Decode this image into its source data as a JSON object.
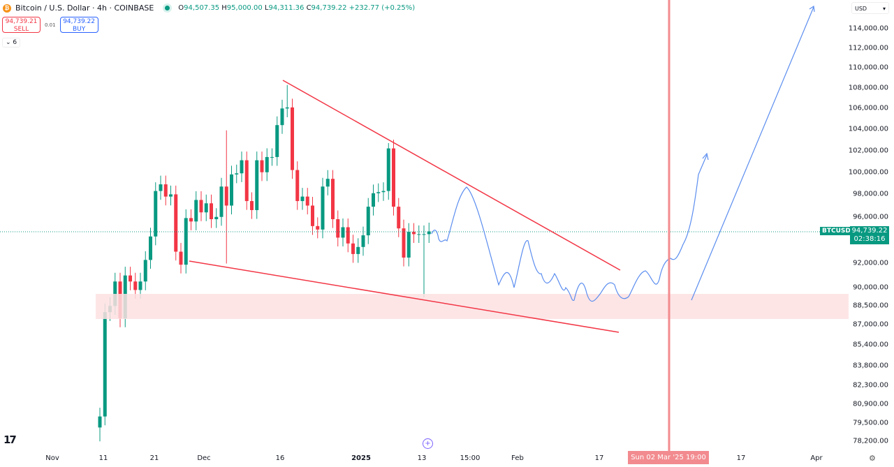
{
  "header": {
    "symbol_title": "Bitcoin / U.S. Dollar · 4h · COINBASE",
    "open": "94,507.35",
    "high": "95,000.00",
    "low": "94,311.36",
    "close": "94,739.22",
    "change": "+232.77 (+0.25%)",
    "o": "O",
    "h": "H",
    "l": "L",
    "c": "C"
  },
  "trade": {
    "sell_price": "94,739.21",
    "sell_label": "SELL",
    "spread": "0.01",
    "buy_price": "94,739.22",
    "buy_label": "BUY"
  },
  "indicators_toggle": "6",
  "currency": "USD",
  "price_axis": {
    "ticks": [
      "114,000.00",
      "112,000.00",
      "110,000.00",
      "108,000.00",
      "106,000.00",
      "104,000.00",
      "102,000.00",
      "100,000.00",
      "98,000.00",
      "96,000.00",
      "92,000.00",
      "90,000.00",
      "88,500.00",
      "87,000.00",
      "85,400.00",
      "83,800.00",
      "82,300.00",
      "80,900.00",
      "79,500.00",
      "78,200.00"
    ],
    "scale": "log"
  },
  "last_price": {
    "symbol": "BTCUSD",
    "price": "94,739.22",
    "countdown": "02:38:16"
  },
  "time_axis": {
    "ticks": [
      "Nov",
      "11",
      "21",
      "Dec",
      "16",
      "2025",
      "13",
      "15:00",
      "Feb",
      "17",
      "17",
      "Apr"
    ],
    "crosshair_label": "Sun 02 Mar '25   19:00"
  },
  "colors": {
    "up": "#089981",
    "down": "#f23645",
    "drawing_red": "#f23645",
    "forecast_blue": "#2962ff",
    "zone": "#fde0e2"
  },
  "chart_data": {
    "type": "candlestick",
    "start_date": "2024-11-10",
    "daily_closes": [
      80000,
      88000,
      88500,
      90500,
      87500,
      91000,
      90500,
      89800,
      90500,
      92300,
      94300,
      98300,
      98900,
      97800,
      98000,
      93000,
      91900,
      95900,
      95600,
      97500,
      96400,
      97200,
      95800,
      96000,
      98700,
      97000,
      99800,
      99900,
      101100,
      97400,
      96600,
      101100,
      100000,
      101400,
      101400,
      104400,
      106000,
      106100,
      100200,
      97400,
      97800,
      97000,
      95200,
      94900,
      98700,
      99400,
      95800,
      94200,
      95100,
      93700,
      92800,
      93400,
      94400,
      96900,
      98100,
      98200,
      98300,
      102200,
      96900,
      95000,
      92500,
      94700,
      94500,
      94500,
      94500,
      94739
    ],
    "extremes": {
      "low": 78200,
      "high": 108300,
      "dec5_wick_high": 103900,
      "dec5_wick_low": 92000,
      "jan6_high": 102700,
      "jan13_low": 89200
    }
  }
}
